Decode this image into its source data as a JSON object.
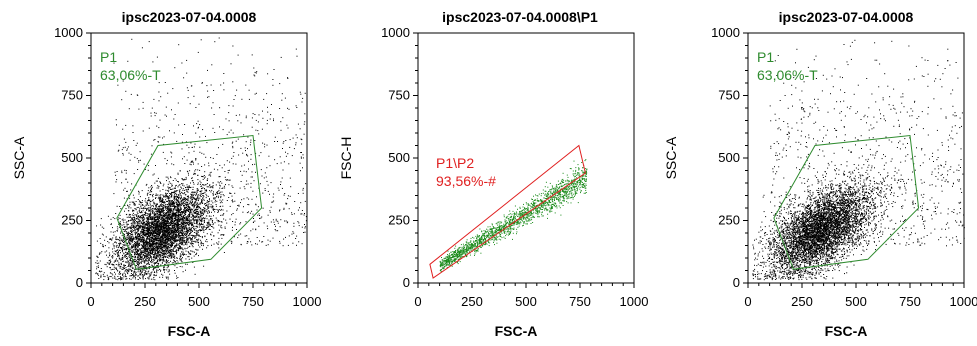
{
  "chart_data": [
    {
      "type": "scatter",
      "title": "ipsc2023-07-04.0008",
      "xlabel": "FSC-A",
      "ylabel": "SSC-A",
      "xlim": [
        0,
        1000
      ],
      "ylim": [
        0,
        1000
      ],
      "xticks": [
        "0",
        "250",
        "500",
        "750",
        "1000"
      ],
      "yticks": [
        "0",
        "250",
        "500",
        "750",
        "1000"
      ],
      "point_color": "#000000",
      "gate": {
        "name": "P1",
        "stat": "63,06%-T",
        "color": "#2e8b2e",
        "polygon": [
          [
            120,
            260
          ],
          [
            310,
            550
          ],
          [
            750,
            590
          ],
          [
            790,
            300
          ],
          [
            555,
            95
          ],
          [
            210,
            55
          ]
        ]
      },
      "population": {
        "center": [
          330,
          210
        ],
        "spread": [
          130,
          110
        ],
        "rotation_deg": 32
      }
    },
    {
      "type": "scatter",
      "title": "ipsc2023-07-04.0008\\P1",
      "xlabel": "FSC-A",
      "ylabel": "FSC-H",
      "xlim": [
        0,
        1000
      ],
      "ylim": [
        0,
        1000
      ],
      "xticks": [
        "0",
        "250",
        "500",
        "750",
        "1000"
      ],
      "yticks": [
        "0",
        "250",
        "500",
        "750",
        "1000"
      ],
      "point_color": "#1a8a1a",
      "gate": {
        "name": "P1\\P2",
        "stat": "93,56%-#",
        "color": "#e02020",
        "polygon": [
          [
            55,
            75
          ],
          [
            745,
            550
          ],
          [
            775,
            440
          ],
          [
            70,
            20
          ]
        ]
      },
      "population": {
        "x_range": [
          100,
          780
        ],
        "slope": 0.52,
        "intercept": 20,
        "noise": 20
      }
    },
    {
      "type": "scatter",
      "title": "ipsc2023-07-04.0008",
      "xlabel": "FSC-A",
      "ylabel": "SSC-A",
      "xlim": [
        0,
        1000
      ],
      "ylim": [
        0,
        1000
      ],
      "xticks": [
        "0",
        "250",
        "500",
        "750",
        "1000"
      ],
      "yticks": [
        "0",
        "250",
        "500",
        "750",
        "1000"
      ],
      "point_color": "#000000",
      "gate": {
        "name": "P1",
        "stat": "63,06%-T",
        "color": "#2e8b2e",
        "polygon": [
          [
            120,
            260
          ],
          [
            310,
            550
          ],
          [
            750,
            590
          ],
          [
            790,
            300
          ],
          [
            555,
            95
          ],
          [
            210,
            55
          ]
        ]
      },
      "population": {
        "center": [
          330,
          210
        ],
        "spread": [
          130,
          110
        ],
        "rotation_deg": 32
      }
    }
  ]
}
